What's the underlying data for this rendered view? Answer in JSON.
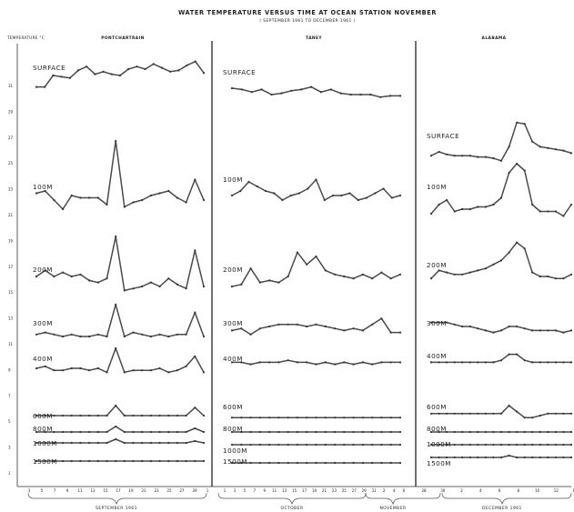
{
  "chart_data": {
    "type": "line",
    "title": "WATER TEMPERATURE VERSUS TIME AT OCEAN STATION NOVEMBER",
    "subtitle": "( SEPTEMBER 1961 TO DECEMBER 1961 )",
    "ylabel": "TEMPERATURE °C",
    "panels": [
      {
        "name": "PONTCHARTRAIN",
        "days": [
          "3",
          "5",
          "7",
          "9",
          "11",
          "13",
          "15",
          "17",
          "19",
          "21",
          "23",
          "25",
          "27",
          "29",
          "1"
        ]
      },
      {
        "name": "TANEY",
        "days": [
          "1",
          "3",
          "5",
          "7",
          "9",
          "11",
          "13",
          "15",
          "17",
          "19",
          "21",
          "23",
          "25",
          "27",
          "29",
          "31",
          "2",
          "4",
          "6"
        ]
      },
      {
        "name": "ALABAMA",
        "days": [
          "28",
          "30",
          "2",
          "4",
          "6",
          "8",
          "10",
          "12",
          "14"
        ]
      }
    ],
    "month_labels": [
      "SEPTEMBER 1961",
      "OCTOBER",
      "NOVEMBER",
      "DECEMBER 1961"
    ],
    "yticks": [
      "1",
      "2",
      "3",
      "4",
      "5",
      "6",
      "7",
      "8",
      "9",
      "10",
      "11",
      "12",
      "13",
      "14",
      "15",
      "16",
      "17",
      "18",
      "19",
      "20",
      "21",
      "22",
      "23",
      "24",
      "25",
      "26",
      "27",
      "28",
      "29",
      "30",
      "31",
      "32"
    ],
    "series": [
      {
        "name": "SURFACE",
        "values": [
          [
            19.6,
            19.6,
            20.5,
            20.4,
            20.3,
            20.9,
            21.2,
            20.6,
            20.8,
            20.6,
            20.5,
            21,
            21.2,
            21,
            21.4,
            21.1,
            20.8,
            20.9,
            21.3,
            21.6,
            20.7
          ],
          [
            19.5,
            19.4,
            19.2,
            19.4,
            19,
            19.1,
            19.3,
            19.4,
            19.6,
            19.2,
            19.4,
            19.1,
            19,
            19,
            19,
            18.8,
            18.9,
            18.9
          ],
          [
            14.2,
            14.5,
            14.3,
            14.2,
            14.2,
            14.2,
            14.1,
            14.1,
            14,
            13.8,
            14.9,
            16.8,
            16.7,
            15.3,
            14.9,
            14.8,
            14.7,
            14.6,
            14.4
          ]
        ]
      },
      {
        "name": "100M",
        "values": [
          [
            13.5,
            13.6,
            13.2,
            12.8,
            13.4,
            13.3,
            13.3,
            13.3,
            13,
            15.8,
            12.9,
            13.1,
            13.2,
            13.4,
            13.5,
            13.6,
            13.3,
            13.1,
            14.1,
            13.2
          ],
          [
            13.4,
            13.6,
            14,
            13.8,
            13.6,
            13.5,
            13.2,
            13.4,
            13.5,
            13.7,
            14.1,
            13.2,
            13.4,
            13.4,
            13.5,
            13.2,
            13.3,
            13.5,
            13.7,
            13.3,
            13.4
          ],
          [
            12.6,
            13,
            13.2,
            12.7,
            12.8,
            12.8,
            12.9,
            12.9,
            13,
            13.3,
            14.4,
            14.8,
            14.5,
            13,
            12.7,
            12.7,
            12.7,
            12.5,
            13
          ]
        ]
      },
      {
        "name": "200M",
        "values": [
          [
            11.5,
            11.8,
            11.5,
            11.7,
            11.5,
            11.6,
            11.3,
            11.2,
            11.4,
            13.5,
            10.8,
            10.9,
            11,
            11.2,
            11,
            11.4,
            11.1,
            10.9,
            12.8,
            11
          ],
          [
            11,
            11.1,
            11.9,
            11.2,
            11.3,
            11.2,
            11.5,
            12.7,
            12.1,
            12.5,
            11.8,
            11.6,
            11.5,
            11.4,
            11.6,
            11.4,
            11.7,
            11.4,
            11.6
          ],
          [
            11.4,
            11.8,
            11.7,
            11.6,
            11.6,
            11.7,
            11.8,
            11.9,
            12.1,
            12.3,
            12.7,
            13.2,
            12.9,
            11.7,
            11.5,
            11.5,
            11.4,
            11.4,
            11.6
          ]
        ]
      },
      {
        "name": "300M",
        "values": [
          [
            10.1,
            10.2,
            10.1,
            10,
            10.1,
            10,
            10,
            10.1,
            10,
            11.6,
            10,
            10.2,
            10.1,
            10,
            10.1,
            10,
            10.1,
            10.1,
            11.2,
            10
          ],
          [
            10.3,
            10.4,
            10.1,
            10.4,
            10.5,
            10.6,
            10.6,
            10.6,
            10.5,
            10.6,
            10.5,
            10.4,
            10.3,
            10.4,
            10.3,
            10.6,
            10.9,
            10.2,
            10.2
          ],
          [
            10.7,
            10.7,
            10.7,
            10.6,
            10.5,
            10.5,
            10.4,
            10.3,
            10.2,
            10.3,
            10.5,
            10.5,
            10.4,
            10.3,
            10.3,
            10.3,
            10.3,
            10.2,
            10.3
          ]
        ]
      },
      {
        "name": "400M",
        "values": [
          [
            9.5,
            9.6,
            9.4,
            9.4,
            9.5,
            9.5,
            9.4,
            9.5,
            9.3,
            10.5,
            9.3,
            9.4,
            9.4,
            9.4,
            9.5,
            9.3,
            9.4,
            9.6,
            10.1,
            9.3
          ],
          [
            9.8,
            9.8,
            9.7,
            9.8,
            9.8,
            9.8,
            9.9,
            9.8,
            9.8,
            9.7,
            9.8,
            9.7,
            9.8,
            9.7,
            9.8,
            9.7,
            9.8,
            9.8,
            9.8
          ],
          [
            9.8,
            9.8,
            9.8,
            9.8,
            9.8,
            9.8,
            9.8,
            9.8,
            9.8,
            9.9,
            10.2,
            10.2,
            9.9,
            9.8,
            9.8,
            9.8,
            9.8,
            9.8,
            9.8
          ]
        ]
      },
      {
        "name": "600M",
        "values": [
          [
            7.2,
            7.2,
            7.2,
            7.2,
            7.2,
            7.2,
            7.2,
            7.2,
            7.2,
            7.7,
            7.2,
            7.2,
            7.2,
            7.2,
            7.2,
            7.2,
            7.2,
            7.2,
            7.6,
            7.2
          ],
          [
            7.1,
            7.1,
            7.1,
            7.1,
            7.1,
            7.1,
            7.1,
            7.1,
            7.1,
            7.1,
            7.1,
            7.1,
            7.1,
            7.1,
            7.1,
            7.1,
            7.1,
            7.1,
            7.1
          ],
          [
            7.3,
            7.3,
            7.3,
            7.3,
            7.3,
            7.3,
            7.3,
            7.3,
            7.3,
            7.3,
            7.7,
            7.4,
            7.1,
            7.1,
            7.2,
            7.3,
            7.3,
            7.3,
            7.3
          ]
        ]
      },
      {
        "name": "800M",
        "values": [
          [
            6.8,
            6.8,
            6.8,
            6.8,
            6.8,
            6.8,
            6.8,
            6.8,
            6.8,
            7.1,
            6.8,
            6.8,
            6.8,
            6.8,
            6.8,
            6.8,
            6.8,
            6.8,
            7,
            6.8
          ],
          [
            6.8,
            6.8,
            6.8,
            6.8,
            6.8,
            6.8,
            6.8,
            6.8,
            6.8,
            6.8,
            6.8,
            6.8,
            6.8,
            6.8,
            6.8,
            6.8,
            6.8,
            6.8,
            6.8
          ],
          [
            6.8,
            6.8,
            6.8,
            6.8,
            6.8,
            6.8,
            6.8,
            6.8,
            6.8,
            6.8,
            6.8,
            6.8,
            6.8,
            6.8,
            6.8,
            6.8,
            6.8,
            6.8,
            6.8
          ]
        ]
      },
      {
        "name": "1000M",
        "values": [
          [
            6.5,
            6.5,
            6.5,
            6.5,
            6.5,
            6.5,
            6.5,
            6.5,
            6.5,
            6.7,
            6.5,
            6.5,
            6.5,
            6.5,
            6.5,
            6.5,
            6.5,
            6.5,
            6.6,
            6.5
          ],
          [
            6.4,
            6.4,
            6.4,
            6.4,
            6.4,
            6.4,
            6.4,
            6.4,
            6.4,
            6.4,
            6.4,
            6.4,
            6.4,
            6.4,
            6.4,
            6.4,
            6.4,
            6.4,
            6.4
          ],
          [
            6.4,
            6.4,
            6.4,
            6.4,
            6.4,
            6.4,
            6.4,
            6.4,
            6.4,
            6.4,
            6.4,
            6.4,
            6.4,
            6.4,
            6.4,
            6.4,
            6.4,
            6.4,
            6.4
          ]
        ]
      },
      {
        "name": "1500M",
        "values": [
          [
            5.1,
            5.1,
            5.1,
            5.1,
            5.1,
            5.1,
            5.1,
            5.1,
            5.1,
            5.1,
            5.1,
            5.1,
            5.1,
            5.1,
            5.1,
            5.1,
            5.1,
            5.1,
            5.1,
            5.1
          ],
          [
            5,
            5,
            5,
            5,
            5,
            5,
            5,
            5,
            5,
            5,
            5,
            5,
            5,
            5,
            5,
            5,
            5,
            5,
            5
          ],
          [
            5.3,
            5.3,
            5.3,
            5.3,
            5.3,
            5.3,
            5.3,
            5.3,
            5.3,
            5.3,
            5.4,
            5.3,
            5.3,
            5.3,
            5.3,
            5.3,
            5.3,
            5.3,
            5.3
          ]
        ]
      }
    ],
    "grid": false,
    "legend": "inline-labels"
  },
  "colors": {
    "line": "#4a4a4a",
    "divider": "#111111",
    "background": "#ffffff"
  }
}
